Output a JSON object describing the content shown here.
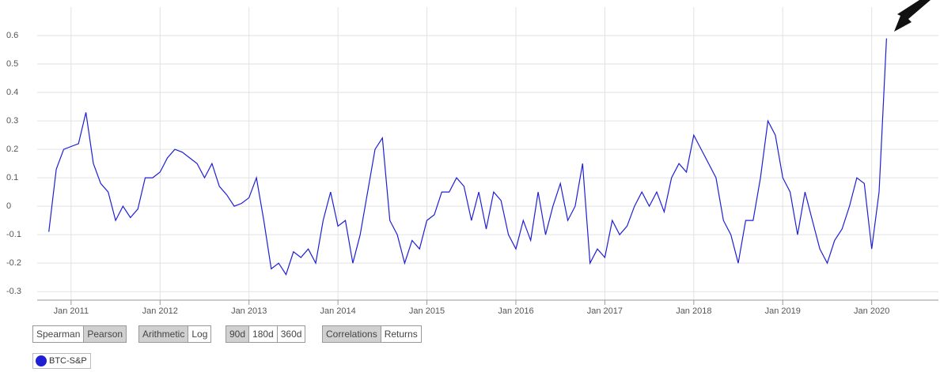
{
  "chart_data": {
    "type": "line",
    "x": [
      "2010-10",
      "2010-11",
      "2010-12",
      "2011-01",
      "2011-02",
      "2011-03",
      "2011-04",
      "2011-05",
      "2011-06",
      "2011-07",
      "2011-08",
      "2011-09",
      "2011-10",
      "2011-11",
      "2011-12",
      "2012-01",
      "2012-02",
      "2012-03",
      "2012-04",
      "2012-05",
      "2012-06",
      "2012-07",
      "2012-08",
      "2012-09",
      "2012-10",
      "2012-11",
      "2012-12",
      "2013-01",
      "2013-02",
      "2013-03",
      "2013-04",
      "2013-05",
      "2013-06",
      "2013-07",
      "2013-08",
      "2013-09",
      "2013-10",
      "2013-11",
      "2013-12",
      "2014-01",
      "2014-02",
      "2014-03",
      "2014-04",
      "2014-05",
      "2014-06",
      "2014-07",
      "2014-08",
      "2014-09",
      "2014-10",
      "2014-11",
      "2014-12",
      "2015-01",
      "2015-02",
      "2015-03",
      "2015-04",
      "2015-05",
      "2015-06",
      "2015-07",
      "2015-08",
      "2015-09",
      "2015-10",
      "2015-11",
      "2015-12",
      "2016-01",
      "2016-02",
      "2016-03",
      "2016-04",
      "2016-05",
      "2016-06",
      "2016-07",
      "2016-08",
      "2016-09",
      "2016-10",
      "2016-11",
      "2016-12",
      "2017-01",
      "2017-02",
      "2017-03",
      "2017-04",
      "2017-05",
      "2017-06",
      "2017-07",
      "2017-08",
      "2017-09",
      "2017-10",
      "2017-11",
      "2017-12",
      "2018-01",
      "2018-02",
      "2018-03",
      "2018-04",
      "2018-05",
      "2018-06",
      "2018-07",
      "2018-08",
      "2018-09",
      "2018-10",
      "2018-11",
      "2018-12",
      "2019-01",
      "2019-02",
      "2019-03",
      "2019-04",
      "2019-05",
      "2019-06",
      "2019-07",
      "2019-08",
      "2019-09",
      "2019-10",
      "2019-11",
      "2019-12",
      "2020-01",
      "2020-02",
      "2020-03"
    ],
    "series": [
      {
        "name": "BTC-S&P",
        "color": "#1f1fd6",
        "values": [
          -0.09,
          0.13,
          0.2,
          0.21,
          0.22,
          0.33,
          0.15,
          0.08,
          0.05,
          -0.05,
          0.0,
          -0.04,
          -0.01,
          0.1,
          0.1,
          0.12,
          0.17,
          0.2,
          0.19,
          0.17,
          0.15,
          0.1,
          0.15,
          0.07,
          0.04,
          0.0,
          0.01,
          0.03,
          0.1,
          -0.05,
          -0.22,
          -0.2,
          -0.24,
          -0.16,
          -0.18,
          -0.15,
          -0.2,
          -0.05,
          0.05,
          -0.07,
          -0.05,
          -0.2,
          -0.1,
          0.05,
          0.2,
          0.24,
          -0.05,
          -0.1,
          -0.2,
          -0.12,
          -0.15,
          -0.05,
          -0.03,
          0.05,
          0.05,
          0.1,
          0.07,
          -0.05,
          0.05,
          -0.08,
          0.05,
          0.02,
          -0.1,
          -0.15,
          -0.05,
          -0.12,
          0.05,
          -0.1,
          0.0,
          0.08,
          -0.05,
          0.0,
          0.15,
          -0.2,
          -0.15,
          -0.18,
          -0.05,
          -0.1,
          -0.07,
          0.0,
          0.05,
          0.0,
          0.05,
          -0.02,
          0.1,
          0.15,
          0.12,
          0.25,
          0.2,
          0.15,
          0.1,
          -0.05,
          -0.1,
          -0.2,
          -0.05,
          -0.05,
          0.1,
          0.3,
          0.25,
          0.1,
          0.05,
          -0.1,
          0.05,
          -0.05,
          -0.15,
          -0.2,
          -0.12,
          -0.08,
          0.0,
          0.1,
          0.08,
          -0.15,
          0.05,
          0.59
        ]
      }
    ],
    "xlim": [
      "2010-08",
      "2020-10"
    ],
    "xticks": [
      {
        "value": "2011-01",
        "label": "Jan 2011"
      },
      {
        "value": "2012-01",
        "label": "Jan 2012"
      },
      {
        "value": "2013-01",
        "label": "Jan 2013"
      },
      {
        "value": "2014-01",
        "label": "Jan 2014"
      },
      {
        "value": "2015-01",
        "label": "Jan 2015"
      },
      {
        "value": "2016-01",
        "label": "Jan 2016"
      },
      {
        "value": "2017-01",
        "label": "Jan 2017"
      },
      {
        "value": "2018-01",
        "label": "Jan 2018"
      },
      {
        "value": "2019-01",
        "label": "Jan 2019"
      },
      {
        "value": "2020-01",
        "label": "Jan 2020"
      }
    ],
    "ylim": [
      -0.33,
      0.7
    ],
    "yticks": [
      -0.3,
      -0.2,
      -0.1,
      0,
      0.1,
      0.2,
      0.3,
      0.4,
      0.5,
      0.6
    ],
    "grid": true,
    "controls": [
      {
        "options": [
          "Spearman",
          "Pearson"
        ],
        "selected": 1
      },
      {
        "options": [
          "Arithmetic",
          "Log"
        ],
        "selected": 0
      },
      {
        "options": [
          "90d",
          "180d",
          "360d"
        ],
        "selected": 0
      },
      {
        "options": [
          "Correlations",
          "Returns"
        ],
        "selected": 0
      }
    ]
  }
}
